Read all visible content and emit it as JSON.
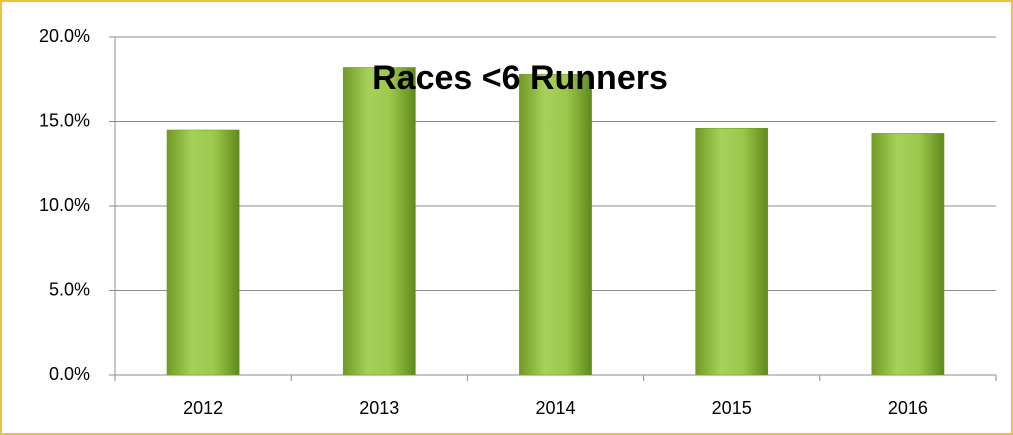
{
  "chart_data": {
    "type": "bar",
    "title": "Races <6 Runners",
    "categories": [
      "2012",
      "2013",
      "2014",
      "2015",
      "2016"
    ],
    "values": [
      14.5,
      18.2,
      17.8,
      14.6,
      14.3
    ],
    "color": "#8fbc3a",
    "ylim": [
      0,
      20
    ],
    "yticks": [
      {
        "value": 0,
        "label": "0.0%"
      },
      {
        "value": 5,
        "label": "5.0%"
      },
      {
        "value": 10,
        "label": "10.0%"
      },
      {
        "value": 15,
        "label": "15.0%"
      },
      {
        "value": 20,
        "label": "20.0%"
      }
    ],
    "grid": true
  }
}
